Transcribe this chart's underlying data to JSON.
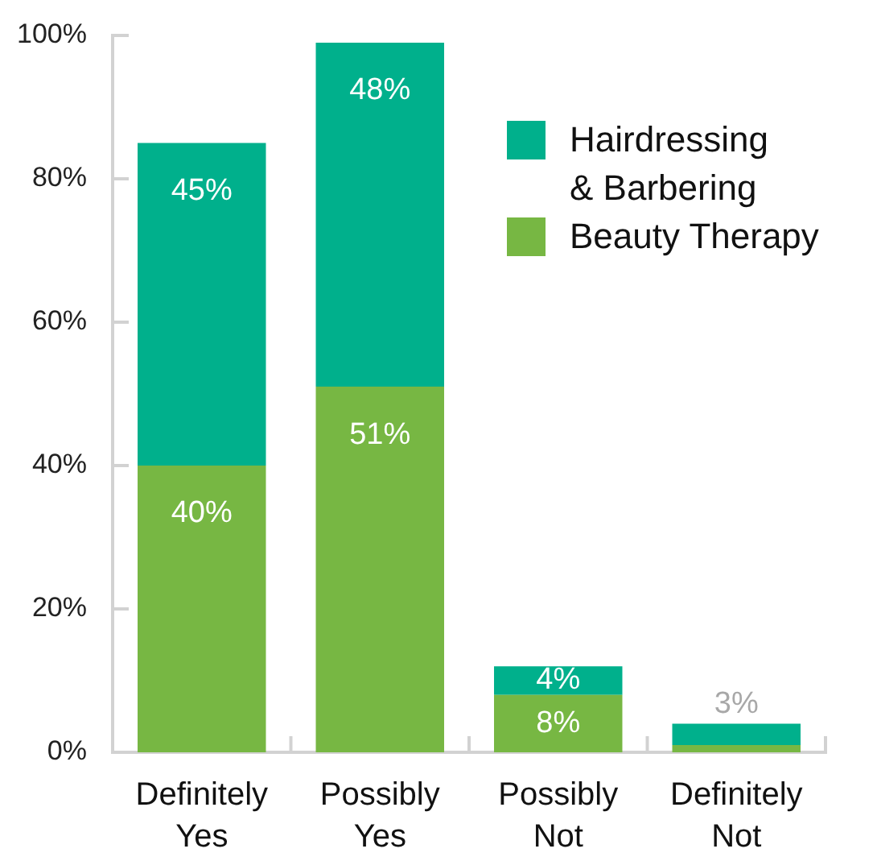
{
  "chart_data": {
    "type": "bar",
    "categories": [
      "Definitely Yes",
      "Possibly Yes",
      "Possibly Not",
      "Definitely Not"
    ],
    "stacked": true,
    "series": [
      {
        "name": "Beauty Therapy",
        "color": "#77b743",
        "values": [
          40,
          51,
          8,
          1
        ],
        "value_labels": [
          "40%",
          "51%",
          "8%",
          null
        ]
      },
      {
        "name": "Hairdressing & Barbering",
        "color": "#00b08c",
        "values": [
          45,
          48,
          4,
          3
        ],
        "value_labels": [
          "45%",
          "48%",
          "4%",
          "3%"
        ]
      }
    ],
    "ylim": [
      0,
      100
    ],
    "yticks": [
      {
        "value": 0,
        "label": "0%"
      },
      {
        "value": 20,
        "label": "20%"
      },
      {
        "value": 40,
        "label": "40%"
      },
      {
        "value": 60,
        "label": "60%"
      },
      {
        "value": 80,
        "label": "80%"
      },
      {
        "value": 100,
        "label": "100%"
      }
    ],
    "legend": "top right"
  }
}
